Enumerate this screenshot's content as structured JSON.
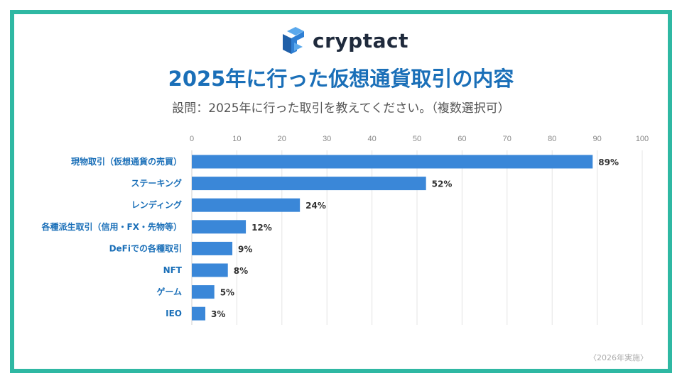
{
  "logo": {
    "text": "cryptact"
  },
  "header": {
    "title": "2025年に行った仮想通貨取引の内容",
    "subtitle": "設問：2025年に行った取引を教えてください。（複数選択可）"
  },
  "footnote": "〈2026年実施〉",
  "colors": {
    "bar": "#3a87d8",
    "label": "#1a6fb8",
    "frame": "#2fb8a3",
    "title": "#1a6fb8"
  },
  "chart_data": {
    "type": "bar",
    "orientation": "horizontal",
    "categories": [
      "現物取引（仮想通貨の売買）",
      "ステーキング",
      "レンディング",
      "各種派生取引（信用・FX・先物等）",
      "DeFiでの各種取引",
      "NFT",
      "ゲーム",
      "IEO"
    ],
    "values": [
      89,
      52,
      24,
      12,
      9,
      8,
      5,
      3
    ],
    "data_labels": [
      "89%",
      "52%",
      "24%",
      "12%",
      "9%",
      "8%",
      "5%",
      "3%"
    ],
    "xlim": [
      0,
      100
    ],
    "ticks": [
      "0",
      "10",
      "20",
      "30",
      "40",
      "50",
      "60",
      "70",
      "80",
      "90",
      "100"
    ],
    "grid": true,
    "axis_position": "top"
  }
}
